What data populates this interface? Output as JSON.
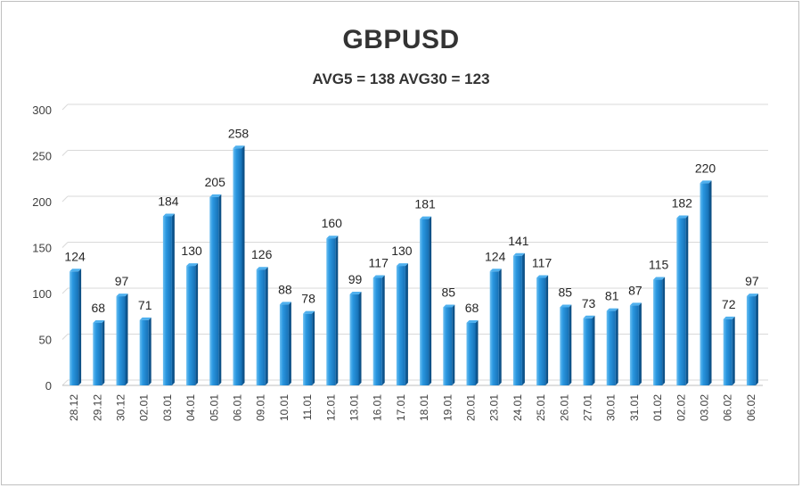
{
  "title": "GBPUSD",
  "subtitle": "AVG5 = 138 AVG30 = 123",
  "chart_data": {
    "type": "bar",
    "title": "GBPUSD",
    "subtitle": "AVG5 = 138 AVG30 = 123",
    "categories": [
      "28.12",
      "29.12",
      "30.12",
      "02.01",
      "03.01",
      "04.01",
      "05.01",
      "06.01",
      "09.01",
      "10.01",
      "11.01",
      "12.01",
      "13.01",
      "16.01",
      "17.01",
      "18.01",
      "19.01",
      "20.01",
      "23.01",
      "24.01",
      "25.01",
      "26.01",
      "27.01",
      "30.01",
      "31.01",
      "01.02",
      "02.02",
      "03.02",
      "06.02",
      "06.02"
    ],
    "values": [
      124,
      68,
      97,
      71,
      184,
      130,
      205,
      258,
      126,
      88,
      78,
      160,
      99,
      117,
      130,
      181,
      85,
      68,
      124,
      141,
      117,
      85,
      73,
      81,
      87,
      115,
      182,
      220,
      72,
      97
    ],
    "ylim": [
      0,
      300
    ],
    "yticks": [
      0,
      50,
      100,
      150,
      200,
      250,
      300
    ],
    "grid": true,
    "data_labels": true,
    "bar_color": "#1f8ad6",
    "bar_dark": "#0e5c9b",
    "grid_color": "#d9d9d9"
  }
}
